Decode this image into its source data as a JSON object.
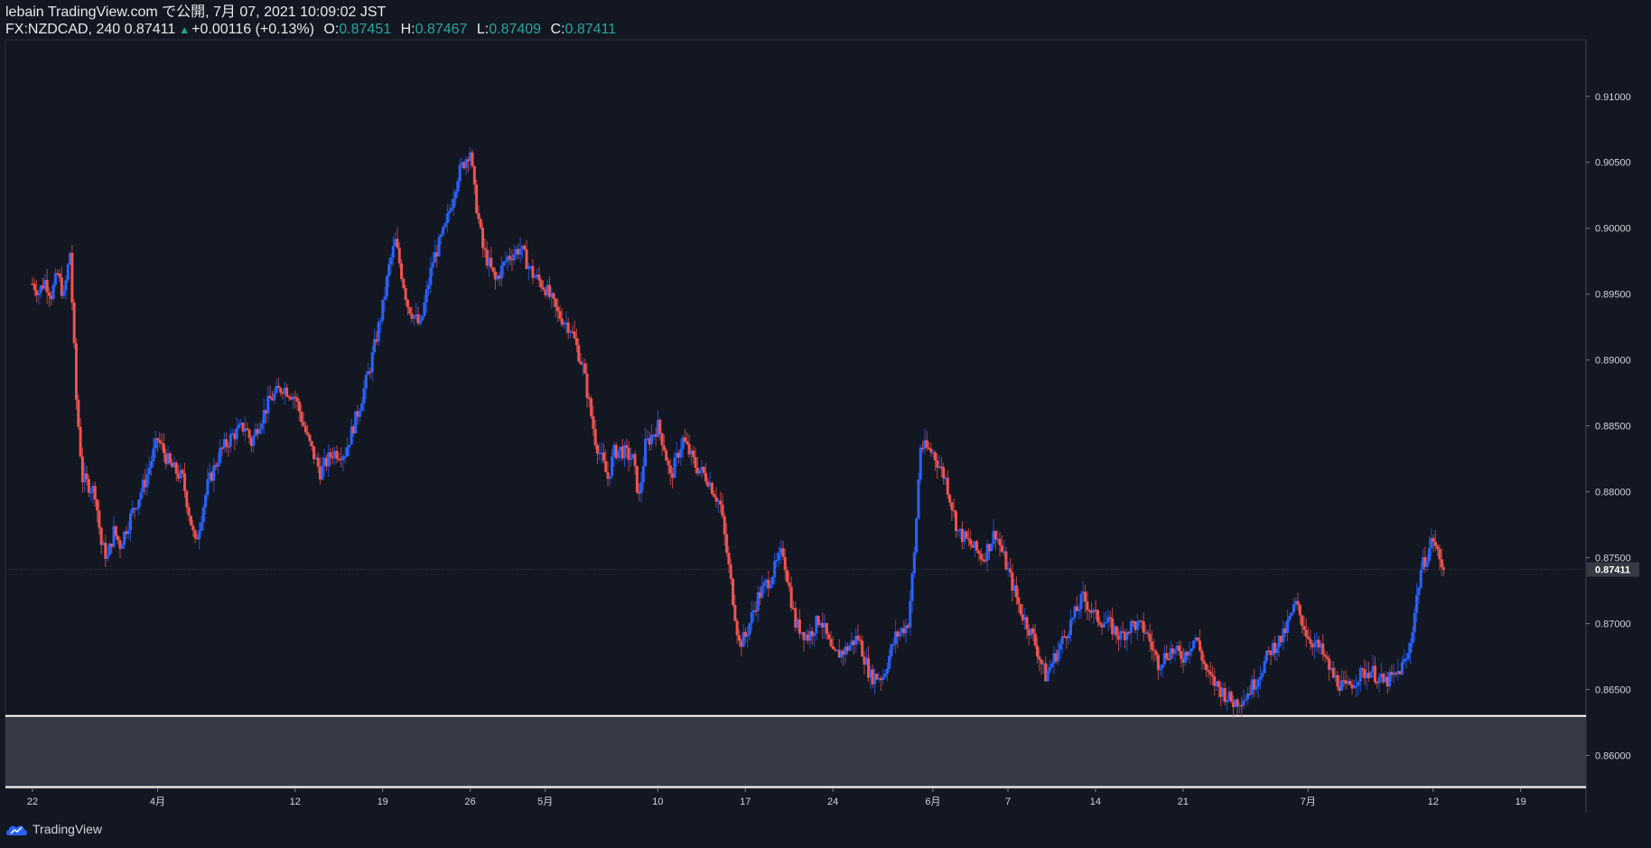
{
  "header": {
    "line1": "lebain TradingView.com で公開, 7月 07, 2021 10:09:02 JST",
    "symbol": "FX:NZDCAD, 240 0.87411",
    "change": "+0.00116 (+0.13%)",
    "open_label": "O:",
    "open": "0.87451",
    "high_label": "H:",
    "high": "0.87467",
    "low_label": "L:",
    "low": "0.87409",
    "close_label": "C:",
    "close": "0.87411"
  },
  "footer": {
    "brand": "TradingView",
    "logo_icon": "tradingview-cloud-logo-icon"
  },
  "colors": {
    "background": "#131722",
    "up": "#2962ff",
    "down": "#ef5350",
    "zone_fill": "#363a45",
    "zone_border": "#ffffff",
    "axis_text": "#d1d4dc",
    "last_price_bg": "#363a45"
  },
  "chart_data": {
    "type": "candlestick",
    "symbol": "FX:NZDCAD",
    "interval": "240",
    "y_range": [
      0.8575,
      0.9143
    ],
    "y_ticks": [
      "0.91000",
      "0.90500",
      "0.90000",
      "0.89500",
      "0.89000",
      "0.88500",
      "0.88000",
      "0.87500",
      "0.87000",
      "0.86500",
      "0.86000"
    ],
    "x_range_days": [
      0,
      123.5
    ],
    "x_ticks": [
      {
        "label": "22",
        "day": 0
      },
      {
        "label": "4月",
        "day": 10
      },
      {
        "label": "12",
        "day": 21
      },
      {
        "label": "19",
        "day": 28
      },
      {
        "label": "26",
        "day": 35
      },
      {
        "label": "5月",
        "day": 41
      },
      {
        "label": "10",
        "day": 50
      },
      {
        "label": "17",
        "day": 57
      },
      {
        "label": "24",
        "day": 64
      },
      {
        "label": "6月",
        "day": 72
      },
      {
        "label": "7",
        "day": 78
      },
      {
        "label": "14",
        "day": 85
      },
      {
        "label": "21",
        "day": 92
      },
      {
        "label": "7月",
        "day": 102
      },
      {
        "label": "12",
        "day": 112
      },
      {
        "label": "19",
        "day": 119
      }
    ],
    "last_price": "0.87411",
    "support_zone": {
      "top": 0.863,
      "bottom": 0.8576
    },
    "close_path": [
      [
        0,
        0.8958
      ],
      [
        0.5,
        0.8952
      ],
      [
        1,
        0.896
      ],
      [
        1.5,
        0.895
      ],
      [
        2,
        0.8965
      ],
      [
        2.5,
        0.8948
      ],
      [
        3,
        0.8982
      ],
      [
        3.5,
        0.887
      ],
      [
        4,
        0.881
      ],
      [
        5,
        0.88
      ],
      [
        5.5,
        0.876
      ],
      [
        6,
        0.875
      ],
      [
        6.5,
        0.877
      ],
      [
        7,
        0.876
      ],
      [
        8,
        0.8785
      ],
      [
        9,
        0.8808
      ],
      [
        10,
        0.884
      ],
      [
        11,
        0.882
      ],
      [
        12,
        0.881
      ],
      [
        13,
        0.876
      ],
      [
        14,
        0.8805
      ],
      [
        15,
        0.883
      ],
      [
        16,
        0.8843
      ],
      [
        17,
        0.885
      ],
      [
        17.5,
        0.8837
      ],
      [
        18,
        0.885
      ],
      [
        19,
        0.887
      ],
      [
        20,
        0.888
      ],
      [
        21,
        0.8872
      ],
      [
        22,
        0.884
      ],
      [
        23,
        0.8815
      ],
      [
        24,
        0.883
      ],
      [
        25,
        0.883
      ],
      [
        26,
        0.886
      ],
      [
        27,
        0.8895
      ],
      [
        28,
        0.894
      ],
      [
        28.5,
        0.897
      ],
      [
        29,
        0.899
      ],
      [
        30,
        0.8942
      ],
      [
        31,
        0.8925
      ],
      [
        32,
        0.8975
      ],
      [
        33,
        0.9
      ],
      [
        34,
        0.904
      ],
      [
        35,
        0.906
      ],
      [
        35.3,
        0.903
      ],
      [
        36,
        0.8985
      ],
      [
        37,
        0.896
      ],
      [
        38,
        0.8978
      ],
      [
        39,
        0.8985
      ],
      [
        40,
        0.8965
      ],
      [
        41,
        0.8955
      ],
      [
        42,
        0.8935
      ],
      [
        43,
        0.8925
      ],
      [
        44,
        0.8895
      ],
      [
        45,
        0.884
      ],
      [
        46,
        0.881
      ],
      [
        46.5,
        0.883
      ],
      [
        47,
        0.8832
      ],
      [
        48,
        0.8825
      ],
      [
        48.5,
        0.8795
      ],
      [
        49,
        0.8835
      ],
      [
        50,
        0.885
      ],
      [
        50.5,
        0.8835
      ],
      [
        51,
        0.881
      ],
      [
        52,
        0.884
      ],
      [
        53,
        0.882
      ],
      [
        54,
        0.881
      ],
      [
        55,
        0.879
      ],
      [
        56,
        0.872
      ],
      [
        56.5,
        0.8685
      ],
      [
        57,
        0.869
      ],
      [
        58,
        0.872
      ],
      [
        59,
        0.8735
      ],
      [
        60,
        0.8755
      ],
      [
        61,
        0.87
      ],
      [
        62,
        0.869
      ],
      [
        63,
        0.8705
      ],
      [
        64,
        0.8675
      ],
      [
        65,
        0.868
      ],
      [
        66,
        0.869
      ],
      [
        67,
        0.866
      ],
      [
        68,
        0.866
      ],
      [
        69,
        0.869
      ],
      [
        70,
        0.87
      ],
      [
        70.5,
        0.875
      ],
      [
        71,
        0.8835
      ],
      [
        72,
        0.883
      ],
      [
        73,
        0.881
      ],
      [
        74,
        0.877
      ],
      [
        75,
        0.876
      ],
      [
        76,
        0.875
      ],
      [
        77,
        0.877
      ],
      [
        78,
        0.874
      ],
      [
        79,
        0.871
      ],
      [
        80,
        0.869
      ],
      [
        81,
        0.866
      ],
      [
        82,
        0.868
      ],
      [
        83,
        0.87
      ],
      [
        84,
        0.872
      ],
      [
        85,
        0.8705
      ],
      [
        86,
        0.87
      ],
      [
        87,
        0.869
      ],
      [
        88,
        0.87
      ],
      [
        89,
        0.8695
      ],
      [
        90,
        0.867
      ],
      [
        91,
        0.868
      ],
      [
        92,
        0.8675
      ],
      [
        93,
        0.869
      ],
      [
        94,
        0.866
      ],
      [
        95,
        0.865
      ],
      [
        96,
        0.864
      ],
      [
        97,
        0.8645
      ],
      [
        98,
        0.866
      ],
      [
        99,
        0.868
      ],
      [
        100,
        0.869
      ],
      [
        101,
        0.8715
      ],
      [
        102,
        0.869
      ],
      [
        103,
        0.868
      ],
      [
        104,
        0.866
      ],
      [
        105,
        0.865
      ],
      [
        106,
        0.866
      ],
      [
        107,
        0.8665
      ],
      [
        108,
        0.8655
      ],
      [
        109,
        0.866
      ],
      [
        110,
        0.8675
      ],
      [
        111,
        0.874
      ],
      [
        112,
        0.8765
      ],
      [
        112.5,
        0.8748
      ],
      [
        113,
        0.8741
      ]
    ]
  }
}
